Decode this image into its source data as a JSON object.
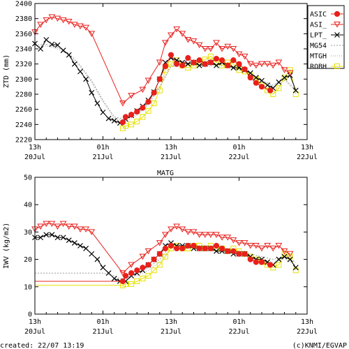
{
  "colors": {
    "asic": "#e8201c",
    "asi": "#e8201c",
    "lpt": "#000000",
    "mg54": "#9a9a9a",
    "mtgh": "#9a9a9a",
    "robh": "#e6e000"
  },
  "footer": {
    "created": "created: 22/07 13:19",
    "credit": "(c)KNMI/EGVAP"
  },
  "chart_data": [
    {
      "type": "line",
      "ylabel": "ZTD (mm)",
      "ylim": [
        2220,
        2400
      ],
      "yticks": [
        2220,
        2240,
        2260,
        2280,
        2300,
        2320,
        2340,
        2360,
        2380,
        2400
      ],
      "xlim": [
        0,
        48
      ],
      "xticks": [
        {
          "x": 0,
          "top": "13h",
          "bottom": "20Jul"
        },
        {
          "x": 12,
          "top": "01h",
          "bottom": "21Jul"
        },
        {
          "x": 24,
          "top": "13h",
          "bottom": "21Jul"
        },
        {
          "x": 36,
          "top": "01h",
          "bottom": "22Jul"
        },
        {
          "x": 48,
          "top": "13h",
          "bottom": "22Jul"
        }
      ],
      "legend": {
        "placement": "right",
        "entries": [
          "ASIC",
          "ASI_",
          "LPT_",
          "MG54",
          "MTGH",
          "ROBH"
        ]
      },
      "series": [
        {
          "name": "ASIC",
          "x": [
            15.5,
            16,
            17,
            18,
            19,
            20,
            21,
            22,
            23,
            24,
            25,
            26,
            27,
            28,
            29,
            30,
            31,
            32,
            33,
            34,
            35,
            36,
            37,
            38,
            39,
            40,
            41.5
          ],
          "y": [
            2243,
            2250,
            2253,
            2257,
            2262,
            2270,
            2282,
            2300,
            2317,
            2332,
            2320,
            2318,
            2328,
            2322,
            2325,
            2320,
            2322,
            2327,
            2325,
            2318,
            2325,
            2320,
            2313,
            2302,
            2295,
            2290,
            2285
          ]
        },
        {
          "name": "ASI_",
          "x": [
            0,
            1,
            2,
            3,
            4,
            5,
            6,
            7,
            8,
            9,
            10,
            15.5,
            17,
            19,
            20,
            22,
            23,
            24,
            25,
            26,
            27,
            28,
            29,
            30,
            31,
            32,
            33,
            34,
            35,
            36,
            37,
            38,
            39,
            40,
            41,
            42,
            43,
            44,
            45
          ],
          "y": [
            2362,
            2372,
            2378,
            2382,
            2380,
            2378,
            2376,
            2372,
            2370,
            2368,
            2360,
            2268,
            2278,
            2286,
            2298,
            2322,
            2348,
            2358,
            2366,
            2360,
            2352,
            2350,
            2345,
            2340,
            2340,
            2348,
            2340,
            2343,
            2340,
            2333,
            2330,
            2320,
            2318,
            2320,
            2320,
            2318,
            2322,
            2312,
            2308
          ]
        },
        {
          "name": "LPT_",
          "x": [
            0,
            1,
            2,
            3,
            4,
            5,
            6,
            7,
            8,
            9,
            10,
            11,
            12,
            13,
            14,
            15,
            16,
            17,
            18,
            19,
            20,
            21,
            22,
            23,
            24,
            25,
            26,
            27,
            28,
            29,
            30,
            31,
            32,
            33,
            34,
            35,
            36,
            37,
            38,
            39,
            40,
            41,
            42,
            43,
            44,
            45,
            46
          ],
          "y": [
            2347,
            2340,
            2352,
            2346,
            2345,
            2338,
            2332,
            2320,
            2310,
            2300,
            2282,
            2268,
            2256,
            2248,
            2245,
            2242,
            2247,
            2252,
            2258,
            2264,
            2272,
            2283,
            2300,
            2322,
            2328,
            2325,
            2322,
            2320,
            2322,
            2318,
            2320,
            2322,
            2318,
            2322,
            2318,
            2315,
            2315,
            2312,
            2308,
            2302,
            2298,
            2292,
            2288,
            2296,
            2302,
            2305,
            2285
          ]
        },
        {
          "name": "MG54",
          "x": [
            0,
            2,
            4,
            6,
            8,
            10,
            12,
            14,
            16,
            18,
            20,
            22,
            24,
            26,
            28,
            30,
            32,
            34,
            36,
            38,
            40,
            42,
            44,
            46
          ],
          "y": [
            2345,
            2346,
            2342,
            2334,
            2318,
            2298,
            2272,
            2250,
            2247,
            2254,
            2268,
            2290,
            2318,
            2322,
            2320,
            2318,
            2320,
            2318,
            2315,
            2308,
            2298,
            2292,
            2300,
            2286
          ]
        },
        {
          "name": "MTGH",
          "x": [
            0,
            2,
            4,
            6,
            8,
            10,
            12,
            14,
            16,
            18,
            20,
            22,
            24,
            26,
            28,
            30,
            32,
            34,
            36,
            38,
            40,
            42,
            44,
            46
          ],
          "y": [
            2343,
            2344,
            2340,
            2332,
            2316,
            2296,
            2270,
            2248,
            2245,
            2252,
            2266,
            2288,
            2316,
            2320,
            2318,
            2316,
            2318,
            2316,
            2313,
            2306,
            2296,
            2290,
            2298,
            2284
          ]
        },
        {
          "name": "ROBH",
          "x": [
            15.5,
            16,
            17,
            18,
            19,
            20,
            21,
            22,
            23,
            24,
            25,
            26,
            27,
            28,
            29,
            30,
            31,
            32,
            33,
            34,
            35,
            36,
            37,
            38,
            39,
            40,
            41,
            42,
            43,
            44,
            45,
            46
          ],
          "y": [
            2235,
            2238,
            2240,
            2244,
            2250,
            2258,
            2268,
            2285,
            2312,
            2320,
            2325,
            2318,
            2315,
            2318,
            2322,
            2326,
            2330,
            2322,
            2318,
            2322,
            2320,
            2312,
            2310,
            2305,
            2300,
            2292,
            2285,
            2280,
            2288,
            2302,
            2312,
            2280
          ]
        }
      ]
    },
    {
      "type": "line",
      "title": "MATG",
      "ylabel": "IWV (kg/m2)",
      "ylim": [
        0,
        50
      ],
      "yticks": [
        0,
        10,
        20,
        30,
        40,
        50
      ],
      "xlim": [
        0,
        48
      ],
      "xticks": [
        {
          "x": 0,
          "top": "13h",
          "bottom": "20Jul"
        },
        {
          "x": 12,
          "top": "01h",
          "bottom": "21Jul"
        },
        {
          "x": 24,
          "top": "13h",
          "bottom": "21Jul"
        },
        {
          "x": 36,
          "top": "01h",
          "bottom": "22Jul"
        },
        {
          "x": 48,
          "top": "13h",
          "bottom": "22Jul"
        }
      ],
      "series": [
        {
          "name": "ASIC",
          "x": [
            0,
            15.5,
            16,
            17,
            18,
            19,
            20,
            21,
            22,
            23,
            24,
            25,
            26,
            27,
            28,
            29,
            30,
            31,
            32,
            33,
            34,
            35,
            36,
            37,
            38,
            39,
            40,
            41.5
          ],
          "y": [
            12,
            12,
            14,
            15,
            16,
            17,
            18,
            20,
            22,
            24,
            25,
            24,
            24,
            25,
            25,
            24,
            24,
            24,
            25,
            24,
            23,
            23,
            22,
            22,
            20,
            19,
            19,
            18
          ]
        },
        {
          "name": "ASI_",
          "x": [
            0,
            1,
            2,
            3,
            4,
            5,
            6,
            7,
            8,
            9,
            10,
            15.5,
            17,
            19,
            20,
            22,
            23,
            24,
            25,
            26,
            27,
            28,
            29,
            30,
            31,
            32,
            33,
            34,
            35,
            36,
            37,
            38,
            39,
            40,
            41,
            42,
            43,
            44,
            45
          ],
          "y": [
            31,
            32,
            33,
            33,
            32,
            33,
            32,
            32,
            31,
            31,
            30,
            15,
            18,
            21,
            23,
            26,
            29,
            31,
            32,
            31,
            30,
            30,
            29,
            29,
            29,
            29,
            28,
            28,
            27,
            26,
            26,
            25,
            25,
            24,
            25,
            24,
            25,
            23,
            22
          ]
        },
        {
          "name": "LPT_",
          "x": [
            0,
            1,
            2,
            3,
            4,
            5,
            6,
            7,
            8,
            9,
            10,
            11,
            12,
            13,
            14,
            15,
            16,
            17,
            18,
            19,
            20,
            21,
            22,
            23,
            24,
            25,
            26,
            27,
            28,
            29,
            30,
            31,
            32,
            33,
            34,
            35,
            36,
            37,
            38,
            39,
            40,
            41,
            42,
            43,
            44,
            45,
            46
          ],
          "y": [
            28,
            28,
            29,
            29,
            28,
            28,
            27,
            26,
            25,
            24,
            22,
            20,
            17,
            15,
            13,
            12,
            12,
            14,
            15,
            16,
            18,
            20,
            22,
            25,
            26,
            25,
            25,
            25,
            24,
            24,
            24,
            24,
            23,
            23,
            23,
            22,
            22,
            22,
            21,
            20,
            20,
            19,
            18,
            20,
            21,
            20,
            17
          ]
        },
        {
          "name": "MG54",
          "x": [
            0,
            6,
            12,
            14,
            15,
            16,
            18,
            20,
            22,
            24,
            26,
            28,
            30,
            32,
            34,
            36,
            38,
            40,
            42,
            44,
            46
          ],
          "y": [
            15,
            15,
            15,
            14,
            13,
            13,
            15,
            17,
            20,
            25,
            25,
            25,
            25,
            24,
            24,
            23,
            22,
            21,
            20,
            21,
            19
          ]
        },
        {
          "name": "MTGH",
          "x": [
            0,
            6,
            12,
            14,
            15,
            16,
            18,
            20,
            22,
            24,
            26,
            28,
            30,
            32,
            34,
            36,
            38,
            40,
            42,
            44,
            46
          ],
          "y": [
            12,
            12,
            12,
            12,
            12,
            13,
            14,
            16,
            19,
            24,
            25,
            24,
            24,
            23,
            23,
            22,
            21,
            20,
            19,
            20,
            18
          ]
        },
        {
          "name": "ROBH",
          "x": [
            0,
            15.5,
            16,
            17,
            18,
            19,
            20,
            21,
            22,
            23,
            24,
            25,
            26,
            27,
            28,
            29,
            30,
            31,
            32,
            33,
            34,
            35,
            36,
            37,
            38,
            39,
            40,
            41,
            42,
            43,
            44,
            45,
            46
          ],
          "y": [
            10.5,
            10.5,
            11,
            11,
            12,
            13,
            14,
            16,
            18,
            21,
            24,
            25,
            24,
            24,
            25,
            25,
            24,
            25,
            24,
            24,
            23,
            24,
            23,
            22,
            21,
            20,
            19,
            18,
            17,
            18,
            22,
            21,
            16
          ]
        }
      ]
    }
  ]
}
